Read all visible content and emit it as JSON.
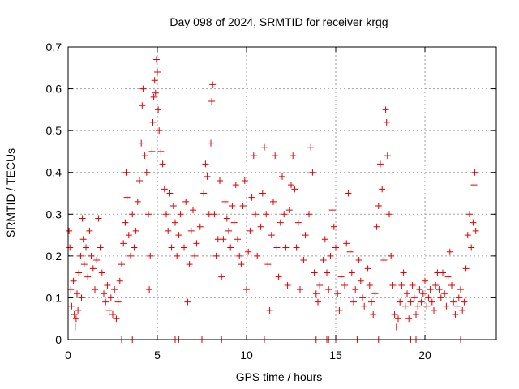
{
  "chart_data": {
    "type": "scatter",
    "title": "Day 098 of 2024, SRMTID for receiver krgg",
    "xlabel": "GPS time / hours",
    "ylabel": "SRMTID / TECUs",
    "xlim": [
      0,
      24
    ],
    "ylim": [
      0,
      0.7
    ],
    "xticks": [
      0,
      5,
      10,
      15,
      20
    ],
    "xtick_labels": [
      "0",
      "5",
      "10",
      "15",
      "20"
    ],
    "yticks": [
      0,
      0.1,
      0.2,
      0.3,
      0.4,
      0.5,
      0.6,
      0.7
    ],
    "ytick_labels": [
      "0",
      "0.1",
      "0.2",
      "0.3",
      "0.4",
      "0.5",
      "0.6",
      "0.7"
    ],
    "grid": true,
    "marker": "+",
    "color": "#e00000",
    "series": [
      {
        "name": "SRMTID",
        "points": [
          [
            0.05,
            0.26
          ],
          [
            0.1,
            0.22
          ],
          [
            0.15,
            0.12
          ],
          [
            0.2,
            0.08
          ],
          [
            0.3,
            0.14
          ],
          [
            0.35,
            0.06
          ],
          [
            0.4,
            0.03
          ],
          [
            0.45,
            0.05
          ],
          [
            0.5,
            0.11
          ],
          [
            0.55,
            0.07
          ],
          [
            0.6,
            0.16
          ],
          [
            0.7,
            0.2
          ],
          [
            0.75,
            0.1
          ],
          [
            0.8,
            0.29
          ],
          [
            0.85,
            0.24
          ],
          [
            0.9,
            0.18
          ],
          [
            1.0,
            0.22
          ],
          [
            1.1,
            0.15
          ],
          [
            1.2,
            0.26
          ],
          [
            1.3,
            0.2
          ],
          [
            1.4,
            0.17
          ],
          [
            1.5,
            0.12
          ],
          [
            1.6,
            0.19
          ],
          [
            1.7,
            0.29
          ],
          [
            1.8,
            0.22
          ],
          [
            1.9,
            0.16
          ],
          [
            2.0,
            0.11
          ],
          [
            2.1,
            0.09
          ],
          [
            2.2,
            0.13
          ],
          [
            2.3,
            0.07
          ],
          [
            2.4,
            0.1
          ],
          [
            2.5,
            0.06
          ],
          [
            2.6,
            0.12
          ],
          [
            2.7,
            0.05
          ],
          [
            2.8,
            0.09
          ],
          [
            2.9,
            0.14
          ],
          [
            3.0,
            0.18
          ],
          [
            3.1,
            0.23
          ],
          [
            3.2,
            0.28
          ],
          [
            3.25,
            0.4
          ],
          [
            3.3,
            0.34
          ],
          [
            3.4,
            0.25
          ],
          [
            3.5,
            0.2
          ],
          [
            3.6,
            0.3
          ],
          [
            3.7,
            0.22
          ],
          [
            3.8,
            0.26
          ],
          [
            3.9,
            0.33
          ],
          [
            4.0,
            0.38
          ],
          [
            4.1,
            0.47
          ],
          [
            4.15,
            0.56
          ],
          [
            4.2,
            0.6
          ],
          [
            4.3,
            0.44
          ],
          [
            4.4,
            0.4
          ],
          [
            4.5,
            0.3
          ],
          [
            4.55,
            0.12
          ],
          [
            4.6,
            0.2
          ],
          [
            4.7,
            0.45
          ],
          [
            4.75,
            0.52
          ],
          [
            4.8,
            0.58
          ],
          [
            4.85,
            0.62
          ],
          [
            4.9,
            0.59
          ],
          [
            4.95,
            0.67
          ],
          [
            5.0,
            0.64
          ],
          [
            5.05,
            0.55
          ],
          [
            5.1,
            0.5
          ],
          [
            5.2,
            0.45
          ],
          [
            5.3,
            0.42
          ],
          [
            5.4,
            0.36
          ],
          [
            5.5,
            0.3
          ],
          [
            5.6,
            0.26
          ],
          [
            5.7,
            0.35
          ],
          [
            5.8,
            0.22
          ],
          [
            5.9,
            0.32
          ],
          [
            6.0,
            0.28
          ],
          [
            6.1,
            0.2
          ],
          [
            6.2,
            0.25
          ],
          [
            6.3,
            0.3
          ],
          [
            6.5,
            0.22
          ],
          [
            6.6,
            0.33
          ],
          [
            6.7,
            0.09
          ],
          [
            6.8,
            0.18
          ],
          [
            6.9,
            0.26
          ],
          [
            7.0,
            0.31
          ],
          [
            7.1,
            0.2
          ],
          [
            7.2,
            0.23
          ],
          [
            7.4,
            0.27
          ],
          [
            7.6,
            0.35
          ],
          [
            7.7,
            0.42
          ],
          [
            7.8,
            0.39
          ],
          [
            7.9,
            0.3
          ],
          [
            8.0,
            0.47
          ],
          [
            8.05,
            0.57
          ],
          [
            8.1,
            0.61
          ],
          [
            8.2,
            0.3
          ],
          [
            8.3,
            0.2
          ],
          [
            8.4,
            0.24
          ],
          [
            8.5,
            0.38
          ],
          [
            8.6,
            0.15
          ],
          [
            8.7,
            0.24
          ],
          [
            8.8,
            0.33
          ],
          [
            8.9,
            0.29
          ],
          [
            9.0,
            0.26
          ],
          [
            9.1,
            0.22
          ],
          [
            9.2,
            0.32
          ],
          [
            9.3,
            0.28
          ],
          [
            9.4,
            0.37
          ],
          [
            9.5,
            0.24
          ],
          [
            9.6,
            0.2
          ],
          [
            9.7,
            0.18
          ],
          [
            9.8,
            0.32
          ],
          [
            9.9,
            0.38
          ],
          [
            10.0,
            0.12
          ],
          [
            10.1,
            0.21
          ],
          [
            10.2,
            0.26
          ],
          [
            10.3,
            0.34
          ],
          [
            10.4,
            0.44
          ],
          [
            10.5,
            0.3
          ],
          [
            10.6,
            0.2
          ],
          [
            10.8,
            0.27
          ],
          [
            10.9,
            0.35
          ],
          [
            11.0,
            0.46
          ],
          [
            11.1,
            0.3
          ],
          [
            11.2,
            0.18
          ],
          [
            11.3,
            0.07
          ],
          [
            11.4,
            0.25
          ],
          [
            11.5,
            0.33
          ],
          [
            11.6,
            0.44
          ],
          [
            11.7,
            0.22
          ],
          [
            11.8,
            0.15
          ],
          [
            11.9,
            0.28
          ],
          [
            12.0,
            0.39
          ],
          [
            12.1,
            0.3
          ],
          [
            12.2,
            0.22
          ],
          [
            12.3,
            0.13
          ],
          [
            12.4,
            0.31
          ],
          [
            12.5,
            0.37
          ],
          [
            12.6,
            0.44
          ],
          [
            12.7,
            0.36
          ],
          [
            12.8,
            0.22
          ],
          [
            12.9,
            0.28
          ],
          [
            13.0,
            0.12
          ],
          [
            13.2,
            0.19
          ],
          [
            13.3,
            0.25
          ],
          [
            13.5,
            0.3
          ],
          [
            13.6,
            0.46
          ],
          [
            13.7,
            0.4
          ],
          [
            13.8,
            0.16
          ],
          [
            13.9,
            0.11
          ],
          [
            14.0,
            0.09
          ],
          [
            14.1,
            0.13
          ],
          [
            14.3,
            0.19
          ],
          [
            14.4,
            0.24
          ],
          [
            14.5,
            0.16
          ],
          [
            14.6,
            0.12
          ],
          [
            14.7,
            0.2
          ],
          [
            14.8,
            0.31
          ],
          [
            14.9,
            0.27
          ],
          [
            15.0,
            0.22
          ],
          [
            15.1,
            0.11
          ],
          [
            15.2,
            0.07
          ],
          [
            15.3,
            0.15
          ],
          [
            15.5,
            0.13
          ],
          [
            15.6,
            0.23
          ],
          [
            15.7,
            0.35
          ],
          [
            15.8,
            0.21
          ],
          [
            15.9,
            0.16
          ],
          [
            16.0,
            0.09
          ],
          [
            16.1,
            0.12
          ],
          [
            16.3,
            0.19
          ],
          [
            16.4,
            0.14
          ],
          [
            16.5,
            0.1
          ],
          [
            16.6,
            0.08
          ],
          [
            16.8,
            0.17
          ],
          [
            16.9,
            0.13
          ],
          [
            17.0,
            0.09
          ],
          [
            17.1,
            0.06
          ],
          [
            17.2,
            0.11
          ],
          [
            17.3,
            0.27
          ],
          [
            17.4,
            0.32
          ],
          [
            17.5,
            0.42
          ],
          [
            17.6,
            0.36
          ],
          [
            17.7,
            0.19
          ],
          [
            17.8,
            0.55
          ],
          [
            17.85,
            0.52
          ],
          [
            17.9,
            0.44
          ],
          [
            18.0,
            0.3
          ],
          [
            18.1,
            0.2
          ],
          [
            18.2,
            0.13
          ],
          [
            18.3,
            0.06
          ],
          [
            18.4,
            0.03
          ],
          [
            18.5,
            0.05
          ],
          [
            18.6,
            0.09
          ],
          [
            18.7,
            0.13
          ],
          [
            18.8,
            0.16
          ],
          [
            18.9,
            0.08
          ],
          [
            19.0,
            0.11
          ],
          [
            19.1,
            0.05
          ],
          [
            19.2,
            0.09
          ],
          [
            19.3,
            0.13
          ],
          [
            19.4,
            0.1
          ],
          [
            19.5,
            0.06
          ],
          [
            19.6,
            0.08
          ],
          [
            19.7,
            0.12
          ],
          [
            19.8,
            0.09
          ],
          [
            19.9,
            0.11
          ],
          [
            20.0,
            0.14
          ],
          [
            20.1,
            0.08
          ],
          [
            20.2,
            0.1
          ],
          [
            20.3,
            0.12
          ],
          [
            20.4,
            0.09
          ],
          [
            20.5,
            0.07
          ],
          [
            20.6,
            0.13
          ],
          [
            20.7,
            0.16
          ],
          [
            20.8,
            0.12
          ],
          [
            20.9,
            0.1
          ],
          [
            21.0,
            0.16
          ],
          [
            21.1,
            0.11
          ],
          [
            21.2,
            0.08
          ],
          [
            21.3,
            0.15
          ],
          [
            21.4,
            0.21
          ],
          [
            21.5,
            0.13
          ],
          [
            21.6,
            0.09
          ],
          [
            21.7,
            0.06
          ],
          [
            21.8,
            0.08
          ],
          [
            21.9,
            0.1
          ],
          [
            22.0,
            0.12
          ],
          [
            22.1,
            0.07
          ],
          [
            22.2,
            0.09
          ],
          [
            22.3,
            0.17
          ],
          [
            22.4,
            0.25
          ],
          [
            22.5,
            0.3
          ],
          [
            22.6,
            0.22
          ],
          [
            22.7,
            0.28
          ],
          [
            22.75,
            0.37
          ],
          [
            22.8,
            0.4
          ],
          [
            22.85,
            0.26
          ]
        ]
      }
    ],
    "zero_markers": [
      3.0,
      3.6,
      6.0,
      6.2,
      7.5,
      8.6,
      11.0,
      13.9,
      14.5,
      14.6,
      15.0,
      16.2,
      17.4,
      19.2,
      19.5,
      22.0
    ]
  }
}
